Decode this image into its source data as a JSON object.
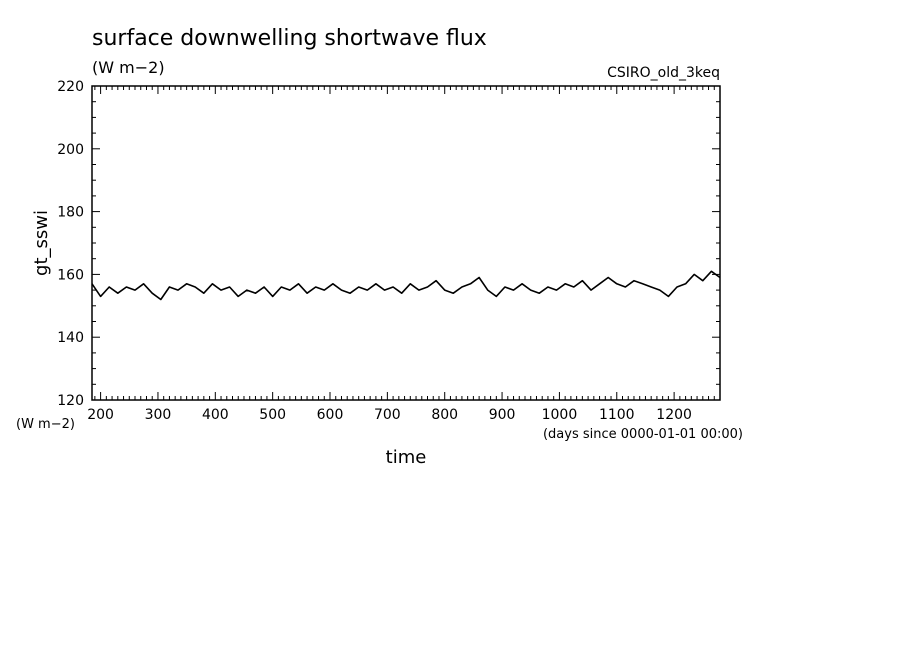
{
  "chart_data": {
    "type": "line",
    "title": "surface downwelling shortwave flux",
    "units": "(W m−2)",
    "model": "CSIRO_old_3keq",
    "ylabel": "gt_sswi",
    "y_units": "(W m−2)",
    "xlabel": "time",
    "x_units": "(days since 0000-01-01 00:00)",
    "xlim": [
      185,
      1280
    ],
    "ylim": [
      120,
      220
    ],
    "x_ticks": [
      200,
      300,
      400,
      500,
      600,
      700,
      800,
      900,
      1000,
      1100,
      1200
    ],
    "y_ticks": [
      120,
      140,
      160,
      180,
      200,
      220
    ],
    "grid": false,
    "series": [
      {
        "color": "#000000",
        "x": [
          185,
          200,
          215,
          230,
          245,
          260,
          275,
          290,
          305,
          320,
          335,
          350,
          365,
          380,
          395,
          410,
          425,
          440,
          455,
          470,
          485,
          500,
          515,
          530,
          545,
          560,
          575,
          590,
          605,
          620,
          635,
          650,
          665,
          680,
          695,
          710,
          725,
          740,
          755,
          770,
          785,
          800,
          815,
          830,
          845,
          860,
          875,
          890,
          905,
          920,
          935,
          950,
          965,
          980,
          995,
          1010,
          1025,
          1040,
          1055,
          1070,
          1085,
          1100,
          1115,
          1130,
          1145,
          1160,
          1175,
          1190,
          1205,
          1220,
          1235,
          1250,
          1265,
          1280
        ],
        "y": [
          157,
          153,
          156,
          154,
          156,
          155,
          157,
          154,
          152,
          156,
          155,
          157,
          156,
          154,
          157,
          155,
          156,
          153,
          155,
          154,
          156,
          153,
          156,
          155,
          157,
          154,
          156,
          155,
          157,
          155,
          154,
          156,
          155,
          157,
          155,
          156,
          154,
          157,
          155,
          156,
          158,
          155,
          154,
          156,
          157,
          159,
          155,
          153,
          156,
          155,
          157,
          155,
          154,
          156,
          155,
          157,
          156,
          158,
          155,
          157,
          159,
          157,
          156,
          158,
          157,
          156,
          155,
          153,
          156,
          157,
          160,
          158,
          161,
          159
        ]
      }
    ]
  }
}
